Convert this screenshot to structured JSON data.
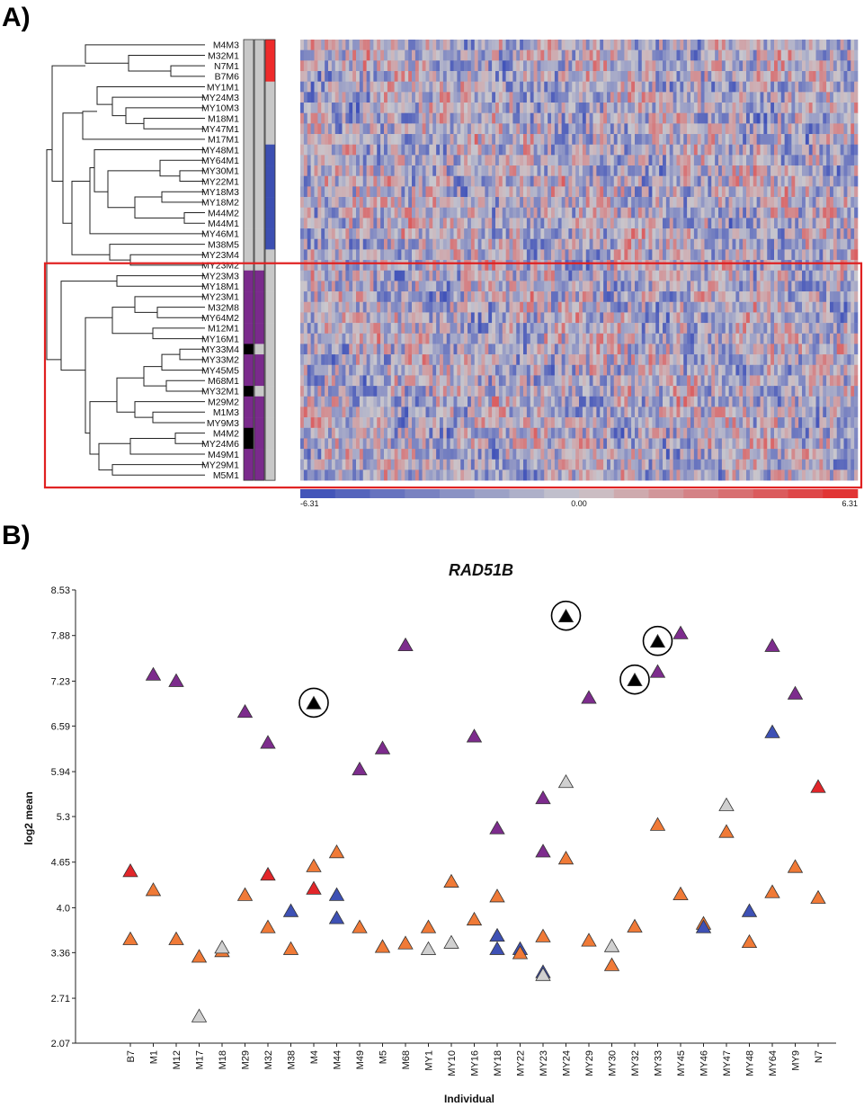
{
  "panel_a_label": "A)",
  "panel_b_label": "B)",
  "chart_data": [
    {
      "type": "heatmap",
      "rows": [
        "M4M3",
        "M32M1",
        "N7M1",
        "B7M6",
        "MY1M1",
        "MY24M3",
        "MY10M3",
        "M18M1",
        "MY47M1",
        "M17M1",
        "MY48M1",
        "MY64M1",
        "MY30M1",
        "MY22M1",
        "MY18M3",
        "MY18M2",
        "M44M2",
        "M44M1",
        "MY46M1",
        "M38M5",
        "MY23M4",
        "MY23M2",
        "MY23M3",
        "MY18M1",
        "MY23M1",
        "M32M8",
        "MY64M2",
        "M12M1",
        "MY16M1",
        "MY33M4",
        "MY33M2",
        "MY45M5",
        "M68M1",
        "MY32M1",
        "M29M2",
        "M1M3",
        "MY9M3",
        "M4M2",
        "MY24M6",
        "M49M1",
        "MY29M1",
        "M5M1"
      ],
      "annotation_col1": [
        "gray",
        "gray",
        "gray",
        "gray",
        "gray",
        "gray",
        "gray",
        "gray",
        "gray",
        "gray",
        "gray",
        "gray",
        "gray",
        "gray",
        "gray",
        "gray",
        "gray",
        "gray",
        "gray",
        "gray",
        "gray",
        "gray",
        "purple",
        "purple",
        "purple",
        "purple",
        "purple",
        "purple",
        "purple",
        "black",
        "purple",
        "purple",
        "purple",
        "black",
        "purple",
        "purple",
        "purple",
        "black",
        "black",
        "purple",
        "purple",
        "purple"
      ],
      "annotation_col2": [
        "gray",
        "gray",
        "gray",
        "gray",
        "gray",
        "gray",
        "gray",
        "gray",
        "gray",
        "gray",
        "gray",
        "gray",
        "gray",
        "gray",
        "gray",
        "gray",
        "gray",
        "gray",
        "gray",
        "gray",
        "gray",
        "gray",
        "purple",
        "purple",
        "purple",
        "purple",
        "purple",
        "purple",
        "purple",
        "gray",
        "purple",
        "purple",
        "purple",
        "gray",
        "purple",
        "purple",
        "purple",
        "purple",
        "purple",
        "purple",
        "purple",
        "purple"
      ],
      "annotation_col3": [
        "red",
        "red",
        "red",
        "red",
        "gray",
        "gray",
        "gray",
        "gray",
        "gray",
        "gray",
        "blue",
        "blue",
        "blue",
        "blue",
        "blue",
        "blue",
        "blue",
        "blue",
        "blue",
        "blue",
        "gray",
        "gray",
        "gray",
        "gray",
        "gray",
        "gray",
        "gray",
        "gray",
        "gray",
        "gray",
        "gray",
        "gray",
        "gray",
        "gray",
        "gray",
        "gray",
        "gray",
        "gray",
        "gray",
        "gray",
        "gray",
        "gray"
      ],
      "annotation_colors": {
        "gray": "#c8c8c8",
        "purple": "#7a2a8c",
        "black": "#000000",
        "red": "#ee2a2a",
        "blue": "#3c4fb2"
      },
      "color_scale": {
        "min_label": "-6.31",
        "mid_label": "0.00",
        "max_label": "6.31",
        "min": -6.31,
        "max": 6.31,
        "low_color": "#3a4db8",
        "mid_color": "#c9c7cd",
        "high_color": "#e32a2a"
      },
      "highlight_rows": [
        "MY23M3",
        "M5M1"
      ],
      "highlight_color": "#e02020"
    },
    {
      "type": "scatter",
      "title": "RAD51B",
      "xlabel": "Individual",
      "ylabel": "log2 mean",
      "categories": [
        "B7",
        "M1",
        "M12",
        "M17",
        "M18",
        "M29",
        "M32",
        "M38",
        "M4",
        "M44",
        "M49",
        "M5",
        "M68",
        "MY1",
        "MY10",
        "MY16",
        "MY18",
        "MY22",
        "MY23",
        "MY24",
        "MY29",
        "MY30",
        "MY32",
        "MY33",
        "MY45",
        "MY46",
        "MY47",
        "MY48",
        "MY64",
        "MY9",
        "N7"
      ],
      "y_ticks": [
        "2.07",
        "2.71",
        "3.36",
        "4.0",
        "4.65",
        "5.3",
        "5.94",
        "6.59",
        "7.23",
        "7.88",
        "8.53"
      ],
      "ylim": [
        2.07,
        8.53
      ],
      "colors": {
        "purple": "#7d2c8d",
        "orange": "#f07a37",
        "red": "#e2262a",
        "blue": "#3e51b5",
        "gray": "#d0d0d0",
        "black": "#000000"
      },
      "points": [
        {
          "x": "B7",
          "y": 4.52,
          "color": "red"
        },
        {
          "x": "B7",
          "y": 3.55,
          "color": "orange"
        },
        {
          "x": "M1",
          "y": 7.32,
          "color": "purple"
        },
        {
          "x": "M1",
          "y": 4.25,
          "color": "orange"
        },
        {
          "x": "M12",
          "y": 7.23,
          "color": "purple"
        },
        {
          "x": "M12",
          "y": 3.55,
          "color": "orange"
        },
        {
          "x": "M17",
          "y": 3.3,
          "color": "orange"
        },
        {
          "x": "M17",
          "y": 2.45,
          "color": "gray"
        },
        {
          "x": "M18",
          "y": 3.38,
          "color": "orange"
        },
        {
          "x": "M18",
          "y": 3.43,
          "color": "gray"
        },
        {
          "x": "M29",
          "y": 6.79,
          "color": "purple"
        },
        {
          "x": "M29",
          "y": 4.18,
          "color": "orange"
        },
        {
          "x": "M32",
          "y": 6.35,
          "color": "purple"
        },
        {
          "x": "M32",
          "y": 4.47,
          "color": "red"
        },
        {
          "x": "M32",
          "y": 3.72,
          "color": "orange"
        },
        {
          "x": "M38",
          "y": 3.95,
          "color": "blue"
        },
        {
          "x": "M38",
          "y": 3.41,
          "color": "orange"
        },
        {
          "x": "M4",
          "y": 6.91,
          "color": "black",
          "circled": true
        },
        {
          "x": "M4",
          "y": 4.59,
          "color": "orange"
        },
        {
          "x": "M4",
          "y": 4.27,
          "color": "red"
        },
        {
          "x": "M44",
          "y": 4.79,
          "color": "orange"
        },
        {
          "x": "M44",
          "y": 4.18,
          "color": "blue"
        },
        {
          "x": "M44",
          "y": 3.85,
          "color": "blue"
        },
        {
          "x": "M49",
          "y": 5.97,
          "color": "purple"
        },
        {
          "x": "M49",
          "y": 3.72,
          "color": "orange"
        },
        {
          "x": "M5",
          "y": 6.27,
          "color": "purple"
        },
        {
          "x": "M5",
          "y": 3.44,
          "color": "orange"
        },
        {
          "x": "M68",
          "y": 7.74,
          "color": "purple"
        },
        {
          "x": "M68",
          "y": 3.49,
          "color": "orange"
        },
        {
          "x": "MY1",
          "y": 3.72,
          "color": "orange"
        },
        {
          "x": "MY1",
          "y": 3.41,
          "color": "gray"
        },
        {
          "x": "MY10",
          "y": 4.37,
          "color": "orange"
        },
        {
          "x": "MY10",
          "y": 3.5,
          "color": "gray"
        },
        {
          "x": "MY16",
          "y": 6.44,
          "color": "purple"
        },
        {
          "x": "MY16",
          "y": 3.83,
          "color": "orange"
        },
        {
          "x": "MY18",
          "y": 5.13,
          "color": "purple"
        },
        {
          "x": "MY18",
          "y": 4.16,
          "color": "orange"
        },
        {
          "x": "MY18",
          "y": 3.6,
          "color": "blue"
        },
        {
          "x": "MY18",
          "y": 3.41,
          "color": "blue"
        },
        {
          "x": "MY22",
          "y": 3.41,
          "color": "blue"
        },
        {
          "x": "MY22",
          "y": 3.35,
          "color": "orange"
        },
        {
          "x": "MY23",
          "y": 5.56,
          "color": "purple"
        },
        {
          "x": "MY23",
          "y": 4.8,
          "color": "purple"
        },
        {
          "x": "MY23",
          "y": 3.59,
          "color": "orange"
        },
        {
          "x": "MY23",
          "y": 3.08,
          "color": "blue"
        },
        {
          "x": "MY23",
          "y": 3.04,
          "color": "gray"
        },
        {
          "x": "MY24",
          "y": 8.15,
          "color": "black",
          "circled": true
        },
        {
          "x": "MY24",
          "y": 5.79,
          "color": "gray"
        },
        {
          "x": "MY24",
          "y": 4.7,
          "color": "orange"
        },
        {
          "x": "MY29",
          "y": 6.99,
          "color": "purple"
        },
        {
          "x": "MY29",
          "y": 3.53,
          "color": "orange"
        },
        {
          "x": "MY30",
          "y": 3.45,
          "color": "gray"
        },
        {
          "x": "MY30",
          "y": 3.18,
          "color": "orange"
        },
        {
          "x": "MY32",
          "y": 7.24,
          "color": "black",
          "circled": true
        },
        {
          "x": "MY32",
          "y": 3.73,
          "color": "orange"
        },
        {
          "x": "MY33",
          "y": 7.79,
          "color": "black",
          "circled": true
        },
        {
          "x": "MY33",
          "y": 7.36,
          "color": "purple"
        },
        {
          "x": "MY33",
          "y": 5.18,
          "color": "orange"
        },
        {
          "x": "MY45",
          "y": 7.91,
          "color": "purple"
        },
        {
          "x": "MY45",
          "y": 4.19,
          "color": "orange"
        },
        {
          "x": "MY46",
          "y": 3.77,
          "color": "orange"
        },
        {
          "x": "MY46",
          "y": 3.72,
          "color": "blue"
        },
        {
          "x": "MY47",
          "y": 5.46,
          "color": "gray"
        },
        {
          "x": "MY47",
          "y": 5.08,
          "color": "orange"
        },
        {
          "x": "MY48",
          "y": 3.95,
          "color": "blue"
        },
        {
          "x": "MY48",
          "y": 3.51,
          "color": "orange"
        },
        {
          "x": "MY64",
          "y": 7.73,
          "color": "purple"
        },
        {
          "x": "MY64",
          "y": 6.5,
          "color": "blue"
        },
        {
          "x": "MY64",
          "y": 4.22,
          "color": "orange"
        },
        {
          "x": "MY9",
          "y": 7.05,
          "color": "purple"
        },
        {
          "x": "MY9",
          "y": 4.58,
          "color": "orange"
        },
        {
          "x": "N7",
          "y": 5.72,
          "color": "red"
        },
        {
          "x": "N7",
          "y": 4.14,
          "color": "orange"
        }
      ]
    }
  ]
}
